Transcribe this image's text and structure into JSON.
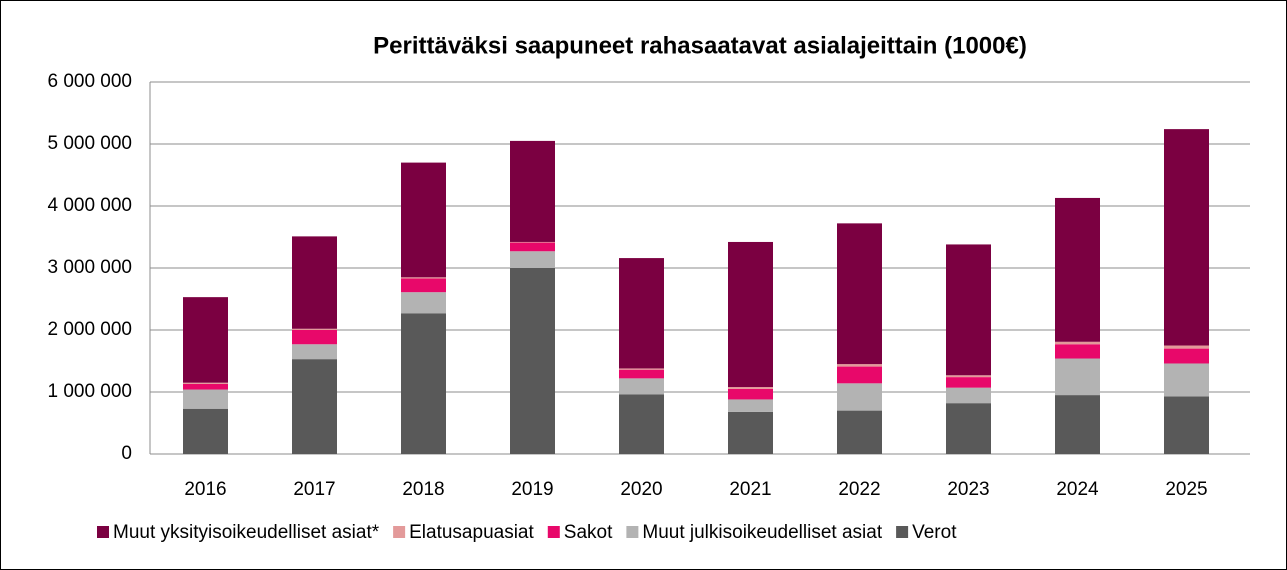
{
  "chart_data": {
    "type": "stacked_bar",
    "title": "Perittäväksi saapuneet rahasaatavat asialajeittain (1000€)",
    "categories": [
      "2016",
      "2017",
      "2018",
      "2019",
      "2020",
      "2021",
      "2022",
      "2023",
      "2024",
      "2025"
    ],
    "series": [
      {
        "name": "Muut yksityisoikeudelliset asiat*",
        "color": "#7b0041",
        "values": [
          1380000,
          1490000,
          1850000,
          1630000,
          1780000,
          2340000,
          2270000,
          2110000,
          2320000,
          3490000
        ]
      },
      {
        "name": "Elatusapuasiat",
        "color": "#e39a9a",
        "values": [
          20000,
          20000,
          20000,
          10000,
          20000,
          30000,
          40000,
          30000,
          40000,
          50000
        ]
      },
      {
        "name": "Sakot",
        "color": "#e8086a",
        "values": [
          90000,
          230000,
          220000,
          140000,
          140000,
          170000,
          270000,
          170000,
          230000,
          240000
        ]
      },
      {
        "name": "Muut julkisoikeudelliset asiat",
        "color": "#b3b3b3",
        "values": [
          310000,
          240000,
          340000,
          270000,
          260000,
          200000,
          440000,
          250000,
          590000,
          530000
        ]
      },
      {
        "name": "Verot",
        "color": "#595959",
        "values": [
          730000,
          1530000,
          2270000,
          3000000,
          960000,
          680000,
          700000,
          820000,
          950000,
          930000
        ]
      }
    ],
    "ylim": [
      0,
      6000000
    ],
    "yticks": [
      0,
      {
        "value": 1000000,
        "label": "1 000 000"
      },
      {
        "value": 2000000,
        "label": "2 000 000"
      },
      {
        "value": 3000000,
        "label": "3 000 000"
      },
      {
        "value": 4000000,
        "label": "4 000 000"
      },
      {
        "value": 5000000,
        "label": "5 000 000"
      },
      {
        "value": 6000000,
        "label": "6 000 000"
      }
    ],
    "grid": true,
    "legend": "bottom"
  }
}
